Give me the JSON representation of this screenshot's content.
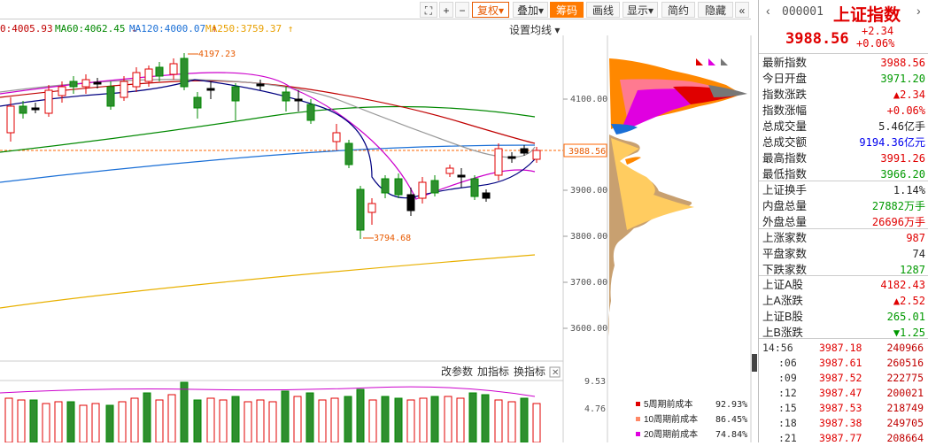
{
  "toolbar": {
    "buttons": [
      "复权",
      "叠加",
      "筹码",
      "画线",
      "显示",
      "简约",
      "隐藏"
    ],
    "more": "«",
    "plus": "+",
    "minus": "−"
  },
  "ma_legend": [
    {
      "label": "0:4005.93",
      "color": "#c00000"
    },
    {
      "label": "MA60:4062.45",
      "color": "#008800"
    },
    {
      "label": "MA120:4000.07",
      "color": "#1a6fd6"
    },
    {
      "label": "MA250:3759.37",
      "color": "#e8a000"
    }
  ],
  "settings_label": "设置均线",
  "price_axis": [
    "4100.00",
    "3900.00",
    "3800.00",
    "3700.00",
    "3600.00"
  ],
  "current_price_tag": "3988.56",
  "annotations": {
    "high": "4197.23",
    "low": "3794.68"
  },
  "volume_toolbar": [
    "改参数",
    "加指标",
    "换指标"
  ],
  "volume_axis": [
    "9.53",
    "4.76"
  ],
  "chip_legend": [
    {
      "label": "5周期前成本",
      "value": "92.93%",
      "color": "#e00000"
    },
    {
      "label": "10周期前成本",
      "value": "86.45%",
      "color": "#ff8866"
    },
    {
      "label": "20周期前成本",
      "value": "74.84%",
      "color": "#e000e0"
    }
  ],
  "index": {
    "code": "000001",
    "name": "上证指数",
    "price": "3988.56",
    "change": "+2.34",
    "change_pct": "+0.06%"
  },
  "quote_rows": [
    {
      "label": "最新指数",
      "value": "3988.56",
      "cls": "red"
    },
    {
      "label": "今日开盘",
      "value": "3971.20",
      "cls": "green"
    },
    {
      "label": "指数涨跌",
      "value": "▲2.34",
      "cls": "red"
    },
    {
      "label": "指数涨幅",
      "value": "+0.06%",
      "cls": "red"
    },
    {
      "label": "总成交量",
      "value": "5.46亿手",
      "cls": "dark"
    },
    {
      "label": "总成交额",
      "value": "9194.36亿元",
      "cls": "blue"
    },
    {
      "label": "最高指数",
      "value": "3991.26",
      "cls": "red"
    },
    {
      "label": "最低指数",
      "value": "3966.20",
      "cls": "green"
    },
    {
      "label": "上证换手",
      "value": "1.14%",
      "cls": "dark"
    },
    {
      "label": "内盘总量",
      "value": "27882万手",
      "cls": "green"
    },
    {
      "label": "外盘总量",
      "value": "26696万手",
      "cls": "red"
    },
    {
      "label": "上涨家数",
      "value": "987",
      "cls": "red"
    },
    {
      "label": "平盘家数",
      "value": "74",
      "cls": "dark"
    },
    {
      "label": "下跌家数",
      "value": "1287",
      "cls": "green"
    },
    {
      "label": "上证A股",
      "value": "4182.43",
      "cls": "red"
    },
    {
      "label": "上A涨跌",
      "value": "▲2.52",
      "cls": "red"
    },
    {
      "label": "上证B股",
      "value": "265.01",
      "cls": "green"
    },
    {
      "label": "上B涨跌",
      "value": "▼1.25",
      "cls": "green"
    }
  ],
  "ticks": [
    {
      "time": "14:56",
      "price": "3987.18",
      "vol": "240966"
    },
    {
      "time": ":06",
      "price": "3987.61",
      "vol": "260516"
    },
    {
      "time": ":09",
      "price": "3987.52",
      "vol": "222775"
    },
    {
      "time": ":12",
      "price": "3987.47",
      "vol": "200021"
    },
    {
      "time": ":15",
      "price": "3987.53",
      "vol": "218749"
    },
    {
      "time": ":18",
      "price": "3987.38",
      "vol": "249705"
    },
    {
      "time": ":21",
      "price": "3987.77",
      "vol": "208664"
    }
  ]
}
